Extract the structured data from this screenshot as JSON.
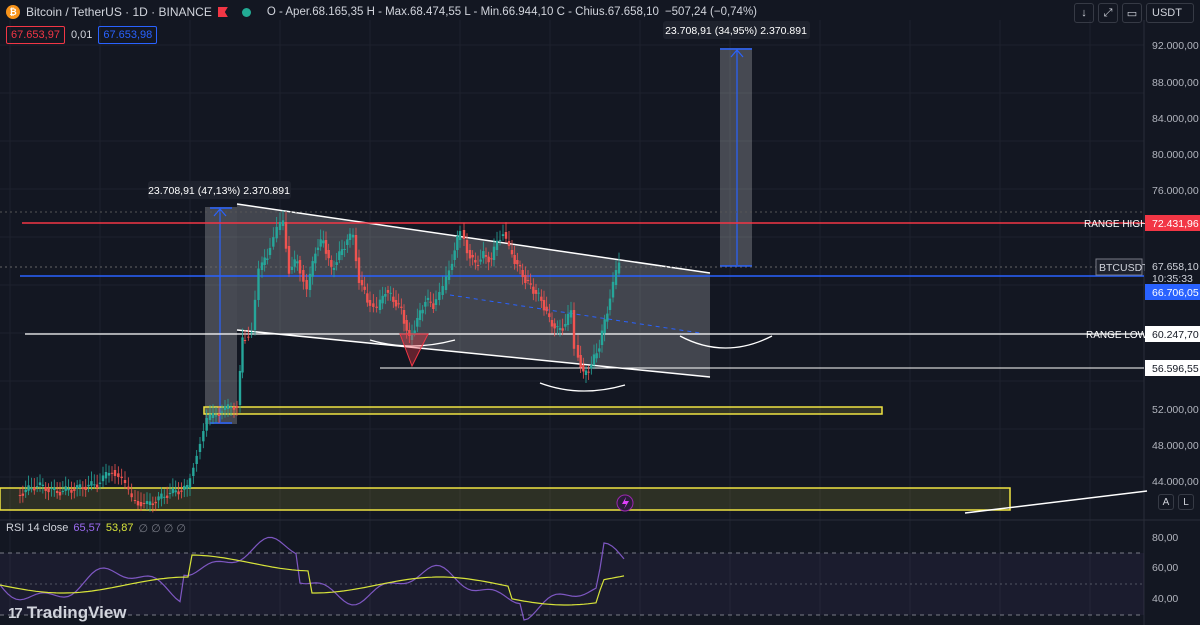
{
  "header": {
    "symbol": "Bitcoin / TetherUS · 1D · BINANCE",
    "ohlc": "O - Aper.68.165,35  H - Max.68.474,55  L - Min.66.944,10  C - Chius.67.658,10",
    "change": "−507,24 (−0,74%)"
  },
  "trade": {
    "sell": "67.653,97",
    "spread": "0,01",
    "buy": "67.653,98"
  },
  "toolbar": {
    "down_icon": "↓",
    "expand_icon": "⤢",
    "screen_icon": "▭",
    "currency": "USDT"
  },
  "price_axis": {
    "ticks": [
      "92.000,00",
      "88.000,00",
      "84.000,00",
      "80.000,00",
      "76.000,00",
      "52.000,00",
      "48.000,00",
      "44.000,00"
    ],
    "range_high_value": "72.431,96",
    "current_symbol": "BTCUSDT",
    "current_price": "67.658,10",
    "countdown": "10:35:33",
    "blue_line_value": "66.706,05",
    "range_low_value": "60.247,70",
    "support_value": "56.596,55",
    "btn_a": "A",
    "btn_l": "L"
  },
  "annotations": {
    "measure_left": "23.708,91 (47,13%) 2.370.891",
    "measure_right": "23.708,91 (34,95%) 2.370.891",
    "range_high_label": "RANGE HIGH",
    "range_low_label": "RANGE LOW"
  },
  "rsi": {
    "label": "RSI 14 close",
    "value1": "65,57",
    "value2": "53,87",
    "na": "∅ ∅ ∅ ∅",
    "ticks": [
      "80,00",
      "60,00",
      "40,00"
    ]
  },
  "logo": {
    "mark": "17",
    "text": "TradingView"
  },
  "colors": {
    "up": "#26a69a",
    "down": "#ef5350",
    "range_high": "#f23645",
    "blue": "#2962ff",
    "yellow": "#f0e442",
    "rsi": "#7e57c2"
  }
}
